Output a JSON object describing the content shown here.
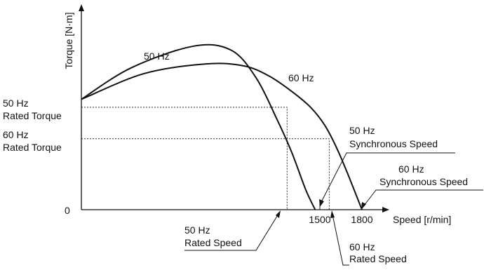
{
  "chart_data": {
    "type": "line",
    "title": "",
    "xlabel": "Speed [r/min]",
    "ylabel": "Torque [N·m]",
    "x_ticks": [
      {
        "label": "1500",
        "value": 1500
      },
      {
        "label": "1800",
        "value": 1800
      }
    ],
    "y_ticks": [
      {
        "label": "0",
        "value": 0
      }
    ],
    "xlim": [
      0,
      1800
    ],
    "ylim": [
      0,
      100
    ],
    "grid": false,
    "legend": "none",
    "series": [
      {
        "name": "50 Hz",
        "x": [
          0,
          320,
          720,
          960,
          1120,
          1260,
          1350,
          1440,
          1500
        ],
        "y": [
          56,
          72,
          83,
          81,
          67,
          45,
          29,
          10,
          0
        ]
      },
      {
        "name": "60 Hz",
        "x": [
          0,
          400,
          800,
          1040,
          1200,
          1350,
          1470,
          1560,
          1640,
          1720,
          1800
        ],
        "y": [
          56,
          69,
          74,
          73,
          68,
          60,
          52,
          43,
          31,
          16,
          0
        ]
      }
    ],
    "annotations": {
      "rated_torque_50": {
        "line1": "50 Hz",
        "line2": "Rated Torque",
        "value": 52
      },
      "rated_torque_60": {
        "line1": "60 Hz",
        "line2": "Rated Torque",
        "value": 36
      },
      "rated_speed_50": {
        "line1": "50 Hz",
        "line2": "Rated Speed",
        "value": 1320
      },
      "rated_speed_60": {
        "line1": "60 Hz",
        "line2": "Rated Speed",
        "value": 1590
      },
      "sync_speed_50": {
        "line1": "50 Hz",
        "line2": "Synchronous Speed",
        "value": 1500
      },
      "sync_speed_60": {
        "line1": "60 Hz",
        "line2": "Synchronous Speed",
        "value": 1800
      }
    },
    "colors": {
      "line": "#111111",
      "background": "#ffffff"
    }
  }
}
